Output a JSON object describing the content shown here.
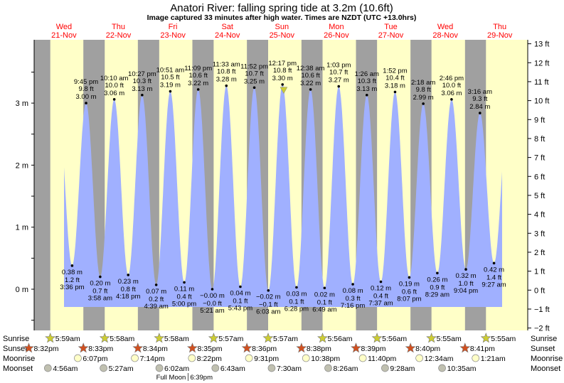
{
  "chart_data": {
    "type": "area",
    "title": "Anatori River: falling  spring tide at 3.2m (10.6ft)",
    "subtitle": "Image captured 33 minutes after high water. Times are NZDT (UTC +13.0hrs)",
    "days": [
      {
        "name": "Wed",
        "date": "21-Nov"
      },
      {
        "name": "Thu",
        "date": "22-Nov"
      },
      {
        "name": "Fri",
        "date": "23-Nov"
      },
      {
        "name": "Sat",
        "date": "24-Nov"
      },
      {
        "name": "Sun",
        "date": "25-Nov"
      },
      {
        "name": "Mon",
        "date": "26-Nov"
      },
      {
        "name": "Tue",
        "date": "27-Nov"
      },
      {
        "name": "Wed",
        "date": "28-Nov"
      },
      {
        "name": "Thu",
        "date": "29-Nov"
      }
    ],
    "y_left": {
      "unit": "m",
      "ticks": [
        "0 m",
        "1 m",
        "2 m",
        "3 m"
      ],
      "values": [
        0,
        1,
        2,
        3
      ]
    },
    "y_right": {
      "unit": "ft",
      "ticks": [
        "−2 ft",
        "−1 ft",
        "0 ft",
        "1 ft",
        "2 ft",
        "3 ft",
        "4 ft",
        "5 ft",
        "6 ft",
        "7 ft",
        "8 ft",
        "9 ft",
        "10 ft",
        "11 ft",
        "12 ft",
        "13 ft"
      ],
      "values": [
        -2,
        -1,
        0,
        1,
        2,
        3,
        4,
        5,
        6,
        7,
        8,
        9,
        10,
        11,
        12,
        13
      ]
    },
    "extremes": [
      {
        "type": "low",
        "day": 0,
        "time": "3:36 pm",
        "m": "0.38 m",
        "ft": "1.2 ft",
        "height": 0.38
      },
      {
        "type": "high",
        "day": 0,
        "time": "9:45 pm",
        "m": "3.00 m",
        "ft": "9.8 ft",
        "height": 3.0
      },
      {
        "type": "low",
        "day": 1,
        "time": "3:58 am",
        "m": "0.20 m",
        "ft": "0.7 ft",
        "height": 0.2
      },
      {
        "type": "high",
        "day": 1,
        "time": "10:10 am",
        "m": "3.06 m",
        "ft": "10.0 ft",
        "height": 3.06
      },
      {
        "type": "low",
        "day": 1,
        "time": "4:18 pm",
        "m": "0.23 m",
        "ft": "0.8 ft",
        "height": 0.23
      },
      {
        "type": "high",
        "day": 1,
        "time": "10:27 pm",
        "m": "3.13 m",
        "ft": "10.3 ft",
        "height": 3.13
      },
      {
        "type": "low",
        "day": 2,
        "time": "4:39 am",
        "m": "0.07 m",
        "ft": "0.2 ft",
        "height": 0.07
      },
      {
        "type": "high",
        "day": 2,
        "time": "10:51 am",
        "m": "3.19 m",
        "ft": "10.5 ft",
        "height": 3.19
      },
      {
        "type": "low",
        "day": 2,
        "time": "5:00 pm",
        "m": "0.11 m",
        "ft": "0.4 ft",
        "height": 0.11
      },
      {
        "type": "high",
        "day": 2,
        "time": "11:09 pm",
        "m": "3.22 m",
        "ft": "10.6 ft",
        "height": 3.22
      },
      {
        "type": "low",
        "day": 3,
        "time": "5:21 am",
        "m": "−0.00 m",
        "ft": "−0.0 ft",
        "height": 0.0
      },
      {
        "type": "high",
        "day": 3,
        "time": "11:33 am",
        "m": "3.28 m",
        "ft": "10.8 ft",
        "height": 3.28
      },
      {
        "type": "low",
        "day": 3,
        "time": "5:43 pm",
        "m": "0.04 m",
        "ft": "0.1 ft",
        "height": 0.04
      },
      {
        "type": "high",
        "day": 3,
        "time": "11:52 pm",
        "m": "3.25 m",
        "ft": "10.7 ft",
        "height": 3.25
      },
      {
        "type": "low",
        "day": 4,
        "time": "6:03 am",
        "m": "−0.02 m",
        "ft": "−0.1 ft",
        "height": -0.02
      },
      {
        "type": "high",
        "day": 4,
        "time": "12:17 pm",
        "m": "3.30 m",
        "ft": "10.8 ft",
        "height": 3.3
      },
      {
        "type": "low",
        "day": 4,
        "time": "6:28 pm",
        "m": "0.03 m",
        "ft": "0.1 ft",
        "height": 0.03
      },
      {
        "type": "high",
        "day": 5,
        "time": "12:38 am",
        "m": "3.22 m",
        "ft": "10.6 ft",
        "height": 3.22
      },
      {
        "type": "low",
        "day": 5,
        "time": "6:49 am",
        "m": "0.02 m",
        "ft": "0.1 ft",
        "height": 0.02
      },
      {
        "type": "high",
        "day": 5,
        "time": "1:03 pm",
        "m": "3.27 m",
        "ft": "10.7 ft",
        "height": 3.27
      },
      {
        "type": "low",
        "day": 5,
        "time": "7:16 pm",
        "m": "0.08 m",
        "ft": "0.3 ft",
        "height": 0.08
      },
      {
        "type": "high",
        "day": 6,
        "time": "1:26 am",
        "m": "3.13 m",
        "ft": "10.3 ft",
        "height": 3.13
      },
      {
        "type": "low",
        "day": 6,
        "time": "7:37 am",
        "m": "0.12 m",
        "ft": "0.4 ft",
        "height": 0.12
      },
      {
        "type": "high",
        "day": 6,
        "time": "1:52 pm",
        "m": "3.18 m",
        "ft": "10.4 ft",
        "height": 3.18
      },
      {
        "type": "low",
        "day": 6,
        "time": "8:07 pm",
        "m": "0.19 m",
        "ft": "0.6 ft",
        "height": 0.19
      },
      {
        "type": "high",
        "day": 7,
        "time": "2:18 am",
        "m": "2.99 m",
        "ft": "9.8 ft",
        "height": 2.99
      },
      {
        "type": "low",
        "day": 7,
        "time": "8:29 am",
        "m": "0.26 m",
        "ft": "0.9 ft",
        "height": 0.26
      },
      {
        "type": "high",
        "day": 7,
        "time": "2:46 pm",
        "m": "3.06 m",
        "ft": "10.0 ft",
        "height": 3.06
      },
      {
        "type": "low",
        "day": 7,
        "time": "9:04 pm",
        "m": "0.32 m",
        "ft": "1.0 ft",
        "height": 0.32
      },
      {
        "type": "high",
        "day": 8,
        "time": "3:16 am",
        "m": "2.84 m",
        "ft": "9.3 ft",
        "height": 2.84
      },
      {
        "type": "low",
        "day": 8,
        "time": "9:27 am",
        "m": "0.42 m",
        "ft": "1.4 ft",
        "height": 0.42
      }
    ],
    "current": {
      "day": 4,
      "time": "12:50 pm",
      "height": 3.2,
      "state": "falling"
    },
    "rows": {
      "labels": {
        "sunrise": "Sunrise",
        "sunset": "Sunset",
        "moonrise": "Moonrise",
        "moonset": "Moonset"
      },
      "sunrise": [
        {
          "day": 0,
          "time": "5:59am"
        },
        {
          "day": 1,
          "time": "5:58am"
        },
        {
          "day": 2,
          "time": "5:58am"
        },
        {
          "day": 3,
          "time": "5:57am"
        },
        {
          "day": 4,
          "time": "5:57am"
        },
        {
          "day": 5,
          "time": "5:56am"
        },
        {
          "day": 6,
          "time": "5:56am"
        },
        {
          "day": 7,
          "time": "5:55am"
        },
        {
          "day": 8,
          "time": "5:55am"
        }
      ],
      "sunset": [
        {
          "day": -1,
          "time": "8:32pm"
        },
        {
          "day": 0,
          "time": "8:33pm"
        },
        {
          "day": 1,
          "time": "8:34pm"
        },
        {
          "day": 2,
          "time": "8:35pm"
        },
        {
          "day": 3,
          "time": "8:36pm"
        },
        {
          "day": 4,
          "time": "8:38pm"
        },
        {
          "day": 5,
          "time": "8:39pm"
        },
        {
          "day": 6,
          "time": "8:40pm"
        },
        {
          "day": 7,
          "time": "8:41pm"
        }
      ],
      "moonrise": [
        {
          "day": 0,
          "time": "6:07pm"
        },
        {
          "day": 1,
          "time": "7:14pm"
        },
        {
          "day": 2,
          "time": "8:22pm"
        },
        {
          "day": 3,
          "time": "9:31pm"
        },
        {
          "day": 4,
          "time": "10:38pm"
        },
        {
          "day": 5,
          "time": "11:40pm"
        },
        {
          "day": 7,
          "time": "12:34am"
        },
        {
          "day": 8,
          "time": "1:21am"
        }
      ],
      "moonset": [
        {
          "day": 0,
          "time": "4:56am"
        },
        {
          "day": 1,
          "time": "5:27am"
        },
        {
          "day": 2,
          "time": "6:02am"
        },
        {
          "day": 3,
          "time": "6:43am"
        },
        {
          "day": 4,
          "time": "7:30am"
        },
        {
          "day": 5,
          "time": "8:26am"
        },
        {
          "day": 6,
          "time": "9:28am"
        },
        {
          "day": 7,
          "time": "10:35am"
        }
      ]
    },
    "events": [
      {
        "label": "Full Moon",
        "day": 2,
        "time": "6:39pm"
      }
    ],
    "colors": {
      "day": "#ffffc8",
      "night": "#a0a0a0",
      "water": "#a0b0ff",
      "day_name": "#ff0000",
      "sunrise_star": "#cccc33",
      "sunset_star": "#d05020",
      "moonrise": "#ffffc8",
      "moonset": "#c0c0b0"
    }
  }
}
